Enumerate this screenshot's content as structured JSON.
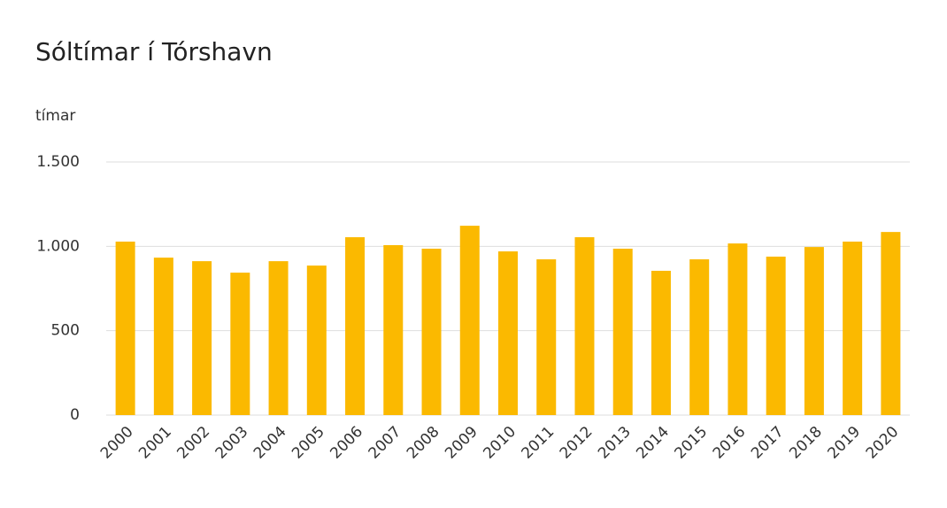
{
  "chart_data": {
    "type": "bar",
    "title": "Sóltímar í Tórshavn",
    "y_label": "tímar",
    "categories": [
      "2000",
      "2001",
      "2002",
      "2003",
      "2004",
      "2005",
      "2006",
      "2007",
      "2008",
      "2009",
      "2010",
      "2011",
      "2012",
      "2013",
      "2014",
      "2015",
      "2016",
      "2017",
      "2018",
      "2019",
      "2020"
    ],
    "values": [
      1028,
      933,
      912,
      844,
      912,
      886,
      1054,
      1007,
      986,
      1122,
      970,
      923,
      1054,
      986,
      855,
      923,
      1017,
      939,
      996,
      1028,
      1085
    ],
    "color": "#fbb900",
    "ylim": [
      0,
      1500
    ],
    "yticks": [
      0,
      500,
      {
        "value": 1000,
        "label": "1.000"
      },
      {
        "value": 1500,
        "label": "1.500"
      }
    ],
    "grid": true
  }
}
